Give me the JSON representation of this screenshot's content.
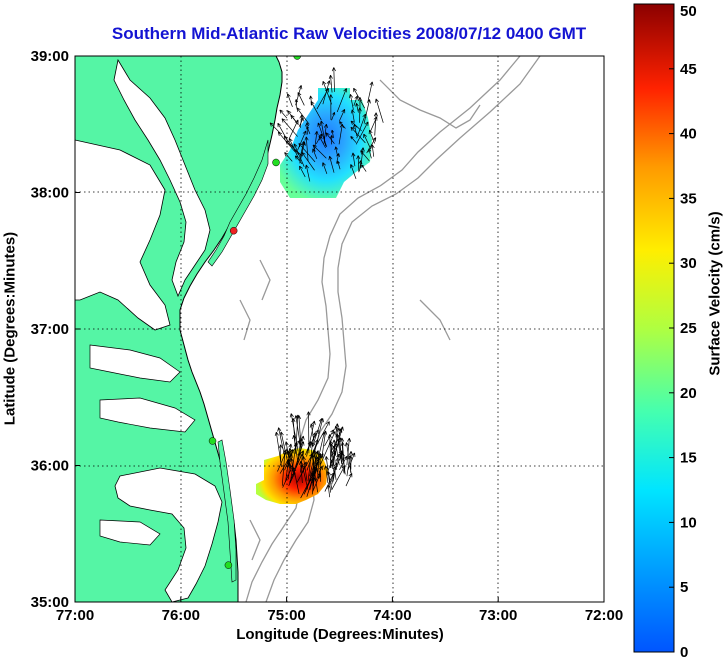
{
  "title": "Southern Mid-Atlantic Raw Velocities 2008/07/12 0400 GMT",
  "map": {
    "x_label": "Longitude (Degrees:Minutes)",
    "y_label": "Latitude (Degrees:Minutes)",
    "x_ticks": [
      "77:00",
      "76:00",
      "75:00",
      "74:00",
      "73:00",
      "72:00"
    ],
    "y_ticks": [
      "39:00",
      "38:00",
      "37:00",
      "36:00",
      "35:00"
    ],
    "lon_range": [
      -77,
      -72
    ],
    "lat_range": [
      35,
      39
    ],
    "land_color": "#55f5a5",
    "grid": "dotted",
    "stations": [
      {
        "lon": -74.9,
        "lat": 39.0,
        "color": "#22dd22"
      },
      {
        "lon": -75.1,
        "lat": 38.22,
        "color": "#22dd22"
      },
      {
        "lon": -75.5,
        "lat": 37.72,
        "color": "#ee2222"
      },
      {
        "lon": -75.7,
        "lat": 36.18,
        "color": "#22dd22"
      },
      {
        "lon": -75.55,
        "lat": 35.27,
        "color": "#22dd22"
      }
    ]
  },
  "colorbar": {
    "label": "Surface Velocity (cm/s)",
    "ticks": [
      "0",
      "5",
      "10",
      "15",
      "20",
      "25",
      "30",
      "35",
      "40",
      "45",
      "50"
    ],
    "range": [
      0,
      50
    ],
    "colormap": "jet"
  },
  "chart_data": {
    "type": "heatmap",
    "title": "Southern Mid-Atlantic Raw Velocities 2008/07/12 0400 GMT",
    "xlabel": "Longitude (Degrees:Minutes)",
    "ylabel": "Latitude (Degrees:Minutes)",
    "xlim": [
      -77,
      -72
    ],
    "ylim": [
      35,
      39
    ],
    "value_label": "Surface Velocity (cm/s)",
    "value_range": [
      0,
      50
    ],
    "regions": [
      {
        "name": "",
        "center_lon": -74.55,
        "center_lat": 38.4,
        "speed_min": 3,
        "speed_max": 20
      },
      {
        "name": "",
        "center_lon": -74.75,
        "center_lat": 35.95,
        "speed_min": 20,
        "speed_max": 50
      }
    ]
  }
}
